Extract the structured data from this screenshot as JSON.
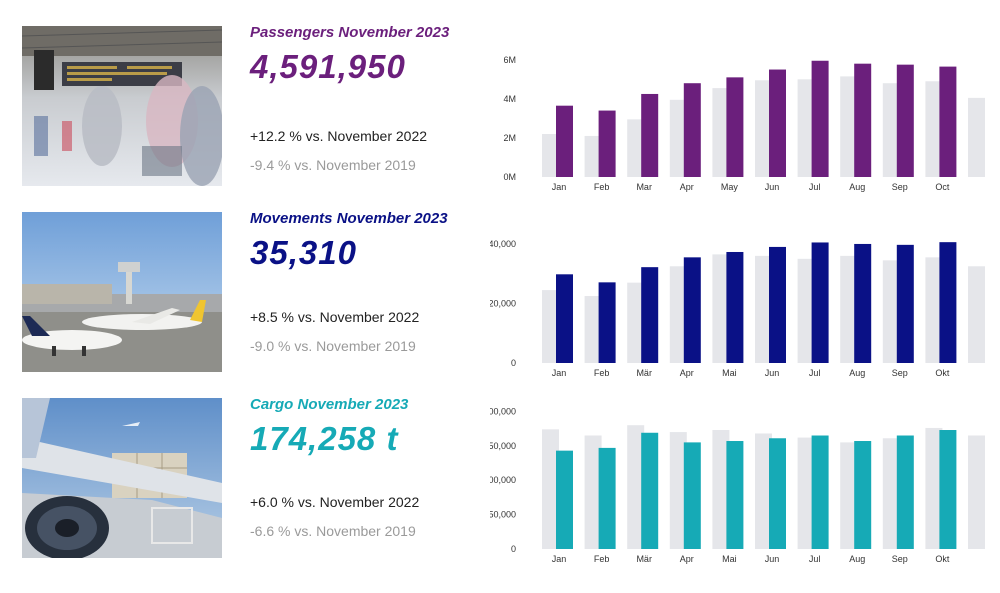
{
  "colors": {
    "passengers": "#6b1f7c",
    "movements": "#0a1186",
    "cargo": "#16aab6",
    "prior": "#e5e6ea"
  },
  "panels": [
    {
      "title": "Passengers November 2023",
      "value": "4,591,950",
      "cmp_prev_year": "+12.2 % vs. November 2022",
      "cmp_2019": "-9.4 % vs. November 2019",
      "photo_icon": "airport-terminal-photo"
    },
    {
      "title": "Movements November 2023",
      "value": "35,310",
      "cmp_prev_year": "+8.5 % vs. November 2022",
      "cmp_2019": "-9.0 % vs. November 2019",
      "photo_icon": "aircraft-apron-photo"
    },
    {
      "title": "Cargo November 2023",
      "value": "174,258 t",
      "cmp_prev_year": "+6.0 % vs. November 2022",
      "cmp_2019": "-6.6 % vs. November 2019",
      "photo_icon": "cargo-loading-photo"
    }
  ],
  "chart_data": [
    {
      "type": "bar",
      "categories": [
        "Jan",
        "Feb",
        "Mar",
        "Apr",
        "May",
        "Jun",
        "Jul",
        "Aug",
        "Sep",
        "Oct",
        ""
      ],
      "y_ticks": [
        "0M",
        "2M",
        "4M",
        "6M"
      ],
      "ylim": [
        0,
        6500000
      ],
      "tick_values": [
        0,
        2000000,
        4000000,
        6000000
      ],
      "grid": false,
      "series": [
        {
          "values": [
            2200000,
            2100000,
            2950000,
            3950000,
            4550000,
            4950000,
            5000000,
            5150000,
            4800000,
            4900000,
            4050000
          ]
        },
        {
          "values": [
            3650000,
            3400000,
            4250000,
            4800000,
            5100000,
            5500000,
            5950000,
            5800000,
            5750000,
            5650000,
            null
          ]
        }
      ]
    },
    {
      "type": "bar",
      "categories": [
        "Jan",
        "Feb",
        "Mär",
        "Apr",
        "Mai",
        "Jun",
        "Jul",
        "Aug",
        "Sep",
        "Okt",
        ""
      ],
      "y_ticks": [
        "0",
        "20,000",
        "40,000"
      ],
      "ylim": [
        0,
        42000
      ],
      "tick_values": [
        0,
        20000,
        40000
      ],
      "grid": false,
      "series": [
        {
          "values": [
            24500,
            22500,
            27000,
            32500,
            36500,
            36000,
            35000,
            36000,
            34500,
            35500,
            32500
          ]
        },
        {
          "values": [
            29800,
            27100,
            32200,
            35500,
            37300,
            39000,
            40500,
            40000,
            39700,
            40600,
            null
          ]
        }
      ]
    },
    {
      "type": "bar",
      "categories": [
        "Jan",
        "Feb",
        "Mär",
        "Apr",
        "Mai",
        "Jun",
        "Jul",
        "Aug",
        "Sep",
        "Okt",
        ""
      ],
      "y_ticks": [
        "0",
        "50,000",
        "100,000",
        "150,000",
        "200,000"
      ],
      "ylim": [
        0,
        205000
      ],
      "tick_values": [
        0,
        50000,
        100000,
        150000,
        200000
      ],
      "grid": false,
      "series": [
        {
          "values": [
            174000,
            165000,
            180000,
            170000,
            173000,
            168000,
            162000,
            155000,
            161000,
            176000,
            165000
          ]
        },
        {
          "values": [
            143000,
            147000,
            169000,
            155000,
            157000,
            161000,
            165000,
            157000,
            165000,
            173000,
            null
          ]
        }
      ]
    }
  ]
}
